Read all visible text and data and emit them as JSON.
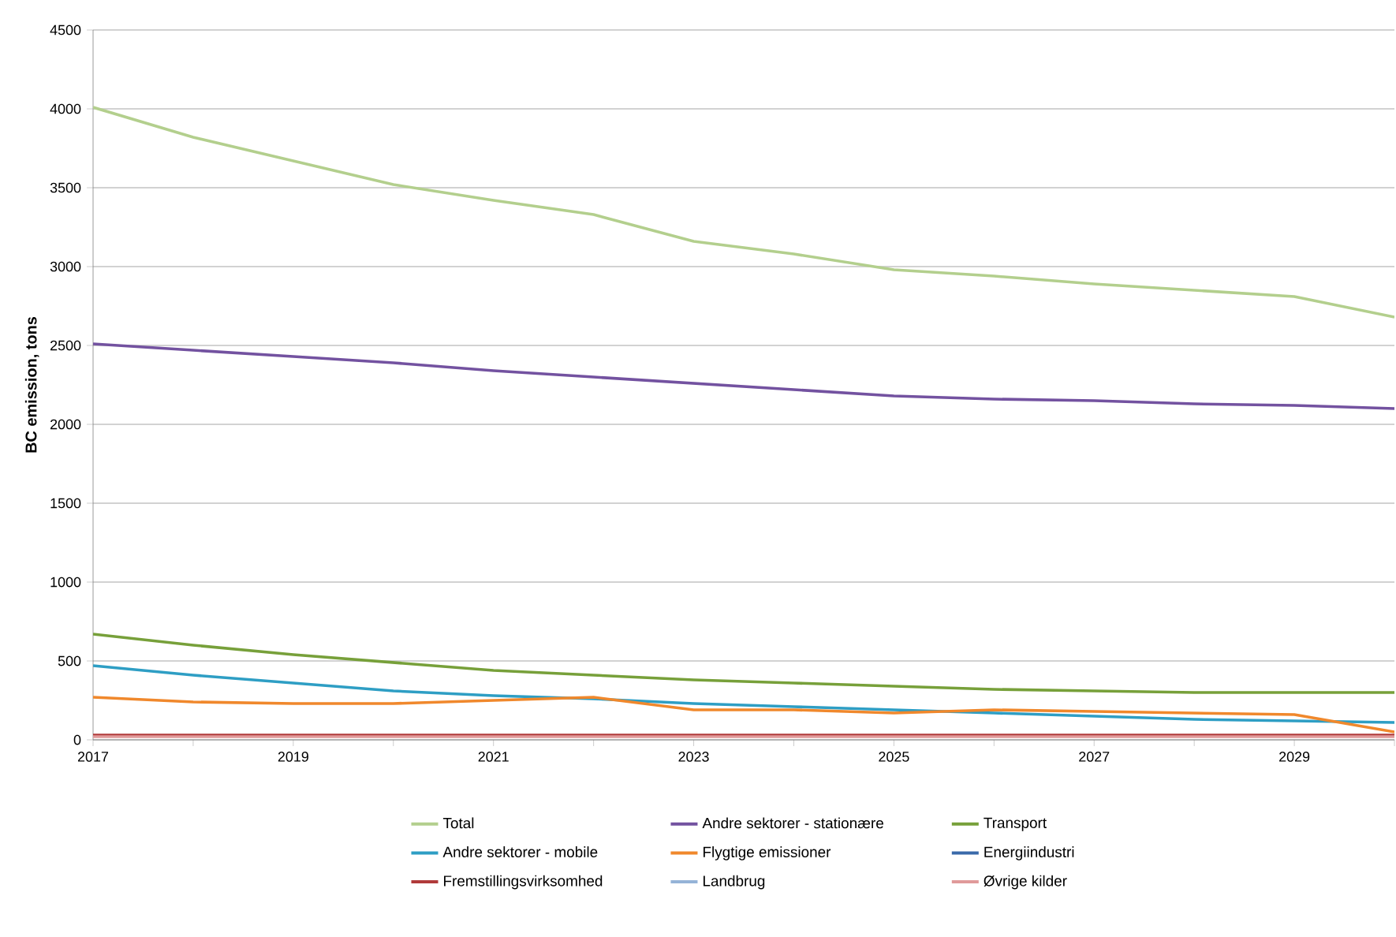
{
  "chart_data": {
    "type": "line",
    "ylabel": "BC emission, tons",
    "x": [
      2017,
      2018,
      2019,
      2020,
      2021,
      2022,
      2023,
      2024,
      2025,
      2026,
      2027,
      2028,
      2029,
      2030
    ],
    "series": [
      {
        "name": "Total",
        "color": "#b3cf8d",
        "values": [
          4010,
          3820,
          3670,
          3520,
          3420,
          3330,
          3160,
          3080,
          2980,
          2940,
          2890,
          2850,
          2810,
          2680
        ]
      },
      {
        "name": "Andre sektorer - stationære",
        "color": "#7352a0",
        "values": [
          2510,
          2470,
          2430,
          2390,
          2340,
          2300,
          2260,
          2220,
          2180,
          2160,
          2150,
          2130,
          2120,
          2100
        ]
      },
      {
        "name": "Transport",
        "color": "#77a03a",
        "values": [
          670,
          600,
          540,
          490,
          440,
          410,
          380,
          360,
          340,
          320,
          310,
          300,
          300,
          300
        ]
      },
      {
        "name": "Andre sektorer - mobile",
        "color": "#2e9ec4",
        "values": [
          470,
          410,
          360,
          310,
          280,
          260,
          230,
          210,
          190,
          170,
          150,
          130,
          120,
          110
        ]
      },
      {
        "name": "Flygtige emissioner",
        "color": "#f0882c",
        "values": [
          270,
          240,
          230,
          230,
          250,
          270,
          190,
          190,
          170,
          190,
          180,
          170,
          160,
          50
        ]
      },
      {
        "name": "Energiindustri",
        "color": "#3a6aaa",
        "values": [
          null,
          null,
          null,
          null,
          null,
          null,
          null,
          null,
          null,
          null,
          null,
          null,
          null,
          null
        ]
      },
      {
        "name": "Fremstillingsvirksomhed",
        "color": "#b03a3a",
        "values": [
          30,
          30,
          30,
          30,
          30,
          30,
          30,
          30,
          30,
          30,
          30,
          30,
          30,
          30
        ]
      },
      {
        "name": "Landbrug",
        "color": "#95b3d7",
        "values": [
          null,
          null,
          null,
          null,
          null,
          null,
          null,
          null,
          null,
          null,
          null,
          null,
          null,
          null
        ]
      },
      {
        "name": "Øvrige kilder",
        "color": "#e09a9a",
        "values": [
          20,
          20,
          20,
          20,
          20,
          20,
          20,
          20,
          20,
          20,
          20,
          20,
          20,
          20
        ]
      }
    ],
    "xlim": [
      2017,
      2030
    ],
    "xticks": [
      2017,
      {
        "value": 2018,
        "label": null
      },
      2019,
      {
        "value": 2020,
        "label": null
      },
      2021,
      {
        "value": 2022,
        "label": null
      },
      2023,
      {
        "value": 2024,
        "label": null
      },
      2025,
      {
        "value": 2026,
        "label": null
      },
      2027,
      {
        "value": 2028,
        "label": null
      },
      2029,
      {
        "value": 2030,
        "label": null
      }
    ],
    "ylim": [
      0,
      4500
    ],
    "yticks": [
      0,
      500,
      1000,
      1500,
      2000,
      2500,
      3000,
      3500,
      4000,
      4500
    ],
    "grid": "y",
    "legend": "bottom",
    "marker": "none",
    "line_style": "solid"
  }
}
